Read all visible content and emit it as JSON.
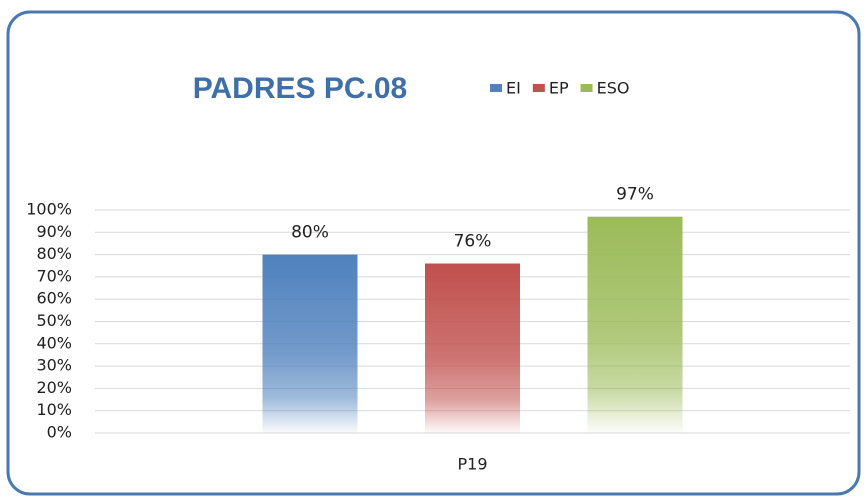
{
  "chart_data": {
    "type": "bar",
    "title": "PADRES PC.08",
    "categories": [
      "P19"
    ],
    "series": [
      {
        "name": "EI",
        "color": "#4f81bd",
        "values": [
          80
        ],
        "value_labels": [
          "80%"
        ]
      },
      {
        "name": "EP",
        "color": "#c0504d",
        "values": [
          76
        ],
        "value_labels": [
          "76%"
        ]
      },
      {
        "name": "ESO",
        "color": "#9bbb59",
        "values": [
          97
        ],
        "value_labels": [
          "97%"
        ]
      }
    ],
    "ylim": [
      0,
      100
    ],
    "yticks": [
      {
        "value": 0,
        "label": "0%"
      },
      {
        "value": 10,
        "label": "10%"
      },
      {
        "value": 20,
        "label": "20%"
      },
      {
        "value": 30,
        "label": "30%"
      },
      {
        "value": 40,
        "label": "40%"
      },
      {
        "value": 50,
        "label": "50%"
      },
      {
        "value": 60,
        "label": "60%"
      },
      {
        "value": 70,
        "label": "70%"
      },
      {
        "value": 80,
        "label": "80%"
      },
      {
        "value": 90,
        "label": "90%"
      },
      {
        "value": 100,
        "label": "100%"
      }
    ],
    "grid": true,
    "legend": "top"
  }
}
